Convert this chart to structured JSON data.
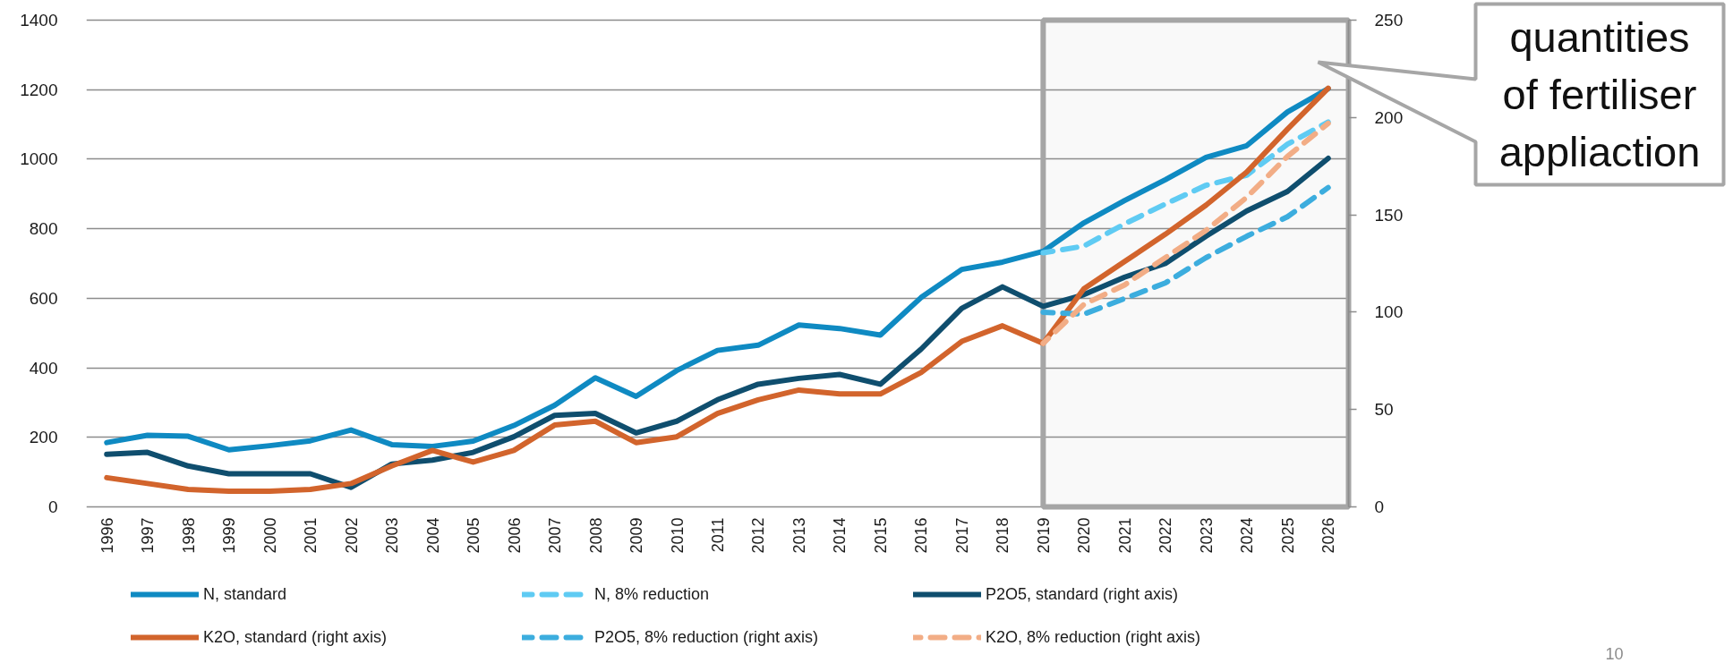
{
  "chart_data": {
    "type": "line",
    "categories": [
      "1996",
      "1997",
      "1998",
      "1999",
      "2000",
      "2001",
      "2002",
      "2003",
      "2004",
      "2005",
      "2006",
      "2007",
      "2008",
      "2009",
      "2010",
      "2011",
      "2012",
      "2013",
      "2014",
      "2015",
      "2016",
      "2017",
      "2018",
      "2019",
      "2020",
      "2021",
      "2022",
      "2023",
      "2024",
      "2025",
      "2026"
    ],
    "series": [
      {
        "name": "N, standard",
        "color": "#0f8ac2",
        "line_style": "solid",
        "values": [
          185,
          206,
          203,
          164,
          176,
          190,
          221,
          179,
          174,
          189,
          234,
          292,
          371,
          318,
          392,
          450,
          465,
          523,
          513,
          494,
          602,
          683,
          704,
          735,
          817,
          881,
          941,
          1005,
          1039,
          1136,
          1203
        ]
      },
      {
        "name": "N, 8% reduction",
        "color": "#5fcbf3",
        "line_style": "dashed",
        "values": [
          null,
          null,
          null,
          null,
          null,
          null,
          null,
          null,
          null,
          null,
          null,
          null,
          null,
          null,
          null,
          null,
          null,
          null,
          null,
          null,
          null,
          null,
          null,
          731,
          750,
          814,
          871,
          925,
          954,
          1043,
          1107
        ]
      },
      {
        "name": "P2O5, standard (right axis)",
        "color": "#0f4e6e",
        "line_style": "solid",
        "axis": "y2",
        "values": [
          27,
          28,
          21,
          17,
          17,
          17,
          10,
          22,
          24,
          28,
          36,
          47,
          48,
          38,
          44,
          55,
          63,
          66,
          68,
          63,
          81,
          102,
          113,
          103,
          109,
          118,
          125,
          139,
          152,
          162,
          179
        ]
      },
      {
        "name": "K2O, standard (right axis)",
        "color": "#d2642c",
        "line_style": "solid",
        "axis": "y2",
        "values": [
          15,
          12,
          9,
          8,
          8,
          9,
          12,
          21,
          29,
          23,
          29,
          42,
          44,
          33,
          36,
          48,
          55,
          60,
          58,
          58,
          69,
          85,
          93,
          84,
          112,
          126,
          140,
          155,
          172,
          194,
          215
        ]
      },
      {
        "name": "P2O5, 8% reduction (right axis)",
        "color": "#3cadde",
        "line_style": "dashed",
        "axis": "y2",
        "values": [
          null,
          null,
          null,
          null,
          null,
          null,
          null,
          null,
          null,
          null,
          null,
          null,
          null,
          null,
          null,
          null,
          null,
          null,
          null,
          null,
          null,
          null,
          null,
          100,
          99,
          107,
          115,
          128,
          139,
          149,
          164
        ]
      },
      {
        "name": "K2O, 8% reduction (right axis)",
        "color": "#f2ad86",
        "line_style": "dashed",
        "axis": "y2",
        "values": [
          null,
          null,
          null,
          null,
          null,
          null,
          null,
          null,
          null,
          null,
          null,
          null,
          null,
          null,
          null,
          null,
          null,
          null,
          null,
          null,
          null,
          null,
          null,
          84,
          104,
          114,
          128,
          142,
          159,
          180,
          197
        ]
      }
    ],
    "ylim": [
      0,
      1400
    ],
    "yticks": [
      0,
      200,
      400,
      600,
      800,
      1000,
      1200,
      1400
    ],
    "y2lim": [
      0,
      250
    ],
    "y2ticks": [
      0,
      50,
      100,
      150,
      200,
      250
    ],
    "grid": "y",
    "legend": "bottom",
    "bands": [
      {
        "axis": "x",
        "from": "2019",
        "to": "2026",
        "color": "#a6a6a6"
      }
    ],
    "annotations": [
      "quantities of fertiliser appliaction",
      "10"
    ]
  }
}
